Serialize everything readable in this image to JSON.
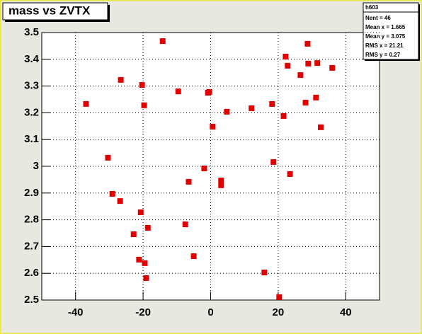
{
  "chart_data": {
    "type": "scatter",
    "title": "mass vs ZVTX",
    "x": [
      -14.2,
      -36.9,
      -26.6,
      -20.3,
      -19.7,
      -9.6,
      -0.8,
      -0.4,
      0.6,
      4.8,
      12.1,
      18.2,
      21.6,
      22.2,
      22.8,
      26.6,
      28.7,
      28.9,
      31.6,
      36.0,
      28.1,
      31.2,
      32.6,
      -30.4,
      -1.9,
      3.1,
      3.1,
      18.6,
      23.5,
      -6.5,
      -29.1,
      -26.8,
      -20.7,
      -18.6,
      -7.5,
      -22.8,
      -21.2,
      -19.5,
      -19.1,
      -5.0,
      15.9,
      20.3
    ],
    "y": [
      3.468,
      3.233,
      3.323,
      3.304,
      3.228,
      3.28,
      3.275,
      3.278,
      3.148,
      3.204,
      3.217,
      3.233,
      3.188,
      3.41,
      3.376,
      3.341,
      3.458,
      3.384,
      3.386,
      3.368,
      3.238,
      3.257,
      3.146,
      3.032,
      2.992,
      2.947,
      2.929,
      3.016,
      2.971,
      2.942,
      2.897,
      2.87,
      2.828,
      2.77,
      2.783,
      2.746,
      2.651,
      2.638,
      2.582,
      2.664,
      2.603,
      2.511
    ],
    "color": "#e00000",
    "xlim": [
      -50,
      50
    ],
    "ylim": [
      2.5,
      3.5
    ],
    "xticks": [
      -40,
      -20,
      0,
      20,
      40
    ],
    "yticks": [
      2.5,
      2.6,
      2.7,
      2.8,
      2.9,
      3,
      3.1,
      3.2,
      3.3,
      3.4,
      3.5
    ],
    "grid": true,
    "stats": {
      "name": "h603",
      "lines": [
        "Nent = 46",
        "Mean x =  1.665",
        "Mean y =  3.075",
        "RMS x =  21.21",
        "RMS y =   0.27"
      ]
    }
  }
}
